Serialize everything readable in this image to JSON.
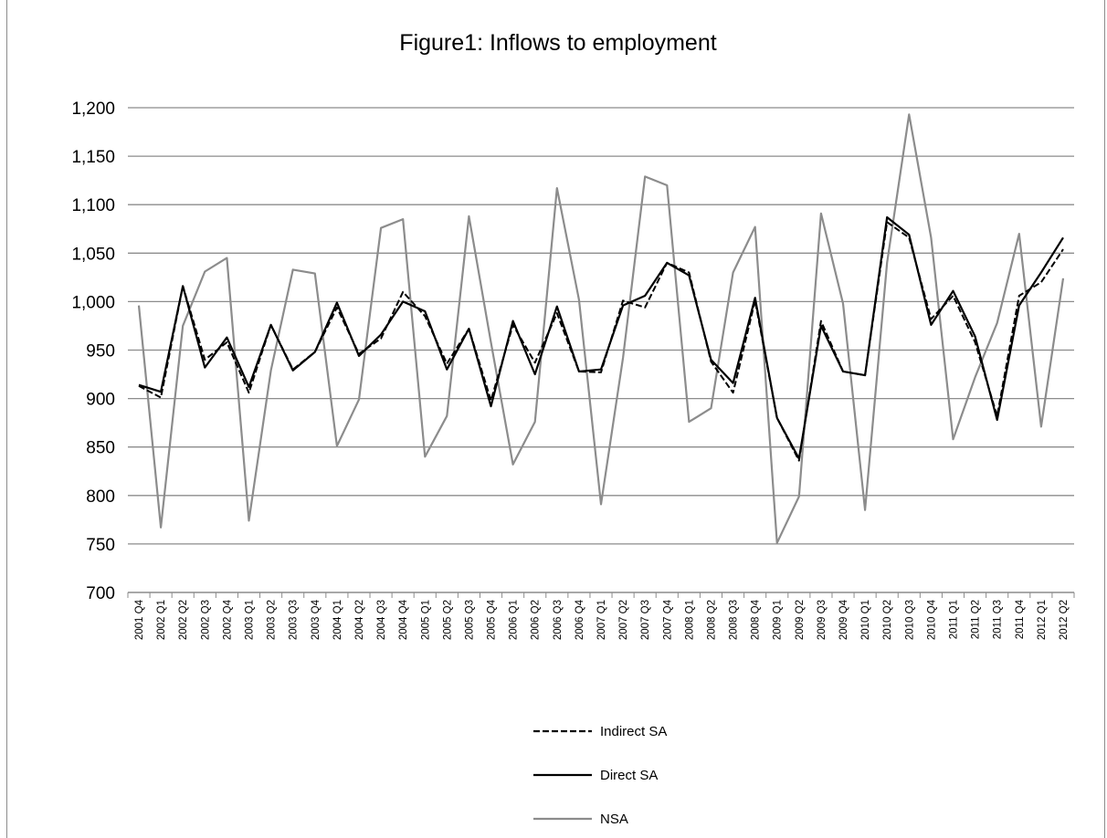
{
  "chart_data": {
    "type": "line",
    "title": "Figure1: Inflows to employment",
    "xlabel": "",
    "ylabel": "",
    "ylim": [
      700,
      1200
    ],
    "ytick_step": 50,
    "yticks": [
      "700",
      "750",
      "800",
      "850",
      "900",
      "950",
      "1,000",
      "1,050",
      "1,100",
      "1,150",
      "1,200"
    ],
    "grid": true,
    "legend_position": "bottom",
    "categories": [
      "2001 Q4",
      "2002 Q1",
      "2002 Q2",
      "2002 Q3",
      "2002 Q4",
      "2003 Q1",
      "2003 Q2",
      "2003 Q3",
      "2003 Q4",
      "2004 Q1",
      "2004 Q2",
      "2004 Q3",
      "2004 Q4",
      "2005 Q1",
      "2005 Q2",
      "2005 Q3",
      "2005 Q4",
      "2006 Q1",
      "2006 Q2",
      "2006 Q3",
      "2006 Q4",
      "2007 Q1",
      "2007 Q2",
      "2007 Q3",
      "2007 Q4",
      "2008 Q1",
      "2008 Q2",
      "2008 Q3",
      "2008 Q4",
      "2009 Q1",
      "2009 Q2",
      "2009 Q3",
      "2009 Q4",
      "2010 Q1",
      "2010 Q2",
      "2010 Q3",
      "2010 Q4",
      "2011 Q1",
      "2011 Q2",
      "2011 Q3",
      "2011 Q4",
      "2012 Q1",
      "2012 Q2"
    ],
    "series": [
      {
        "name": "Indirect SA",
        "color": "#000000",
        "dash": "dashed",
        "values": [
          913,
          901,
          1016,
          940,
          958,
          906,
          976,
          930,
          948,
          994,
          946,
          962,
          1010,
          985,
          936,
          972,
          898,
          976,
          937,
          988,
          928,
          927,
          1001,
          994,
          1040,
          1030,
          938,
          906,
          1001,
          880,
          836,
          980,
          928,
          924,
          1082,
          1066,
          982,
          1006,
          958,
          882,
          1006,
          1020,
          1054
        ]
      },
      {
        "name": "Direct SA",
        "color": "#000000",
        "dash": "solid",
        "values": [
          914,
          907,
          1016,
          932,
          963,
          912,
          976,
          929,
          948,
          999,
          944,
          966,
          1000,
          990,
          930,
          972,
          892,
          980,
          925,
          995,
          928,
          930,
          996,
          1006,
          1040,
          1027,
          940,
          916,
          1004,
          880,
          838,
          975,
          928,
          924,
          1087,
          1069,
          976,
          1011,
          964,
          878,
          996,
          1030,
          1066
        ]
      },
      {
        "name": "NSA",
        "color": "#8c8c8c",
        "dash": "solid",
        "values": [
          996,
          767,
          975,
          1031,
          1045,
          774,
          929,
          1033,
          1029,
          851,
          899,
          1076,
          1085,
          840,
          882,
          1088,
          958,
          832,
          876,
          1117,
          1002,
          791,
          942,
          1129,
          1120,
          876,
          890,
          1030,
          1077,
          751,
          799,
          1091,
          998,
          785,
          1040,
          1193,
          1066,
          858,
          922,
          978,
          1070,
          871,
          1024
        ]
      }
    ]
  }
}
